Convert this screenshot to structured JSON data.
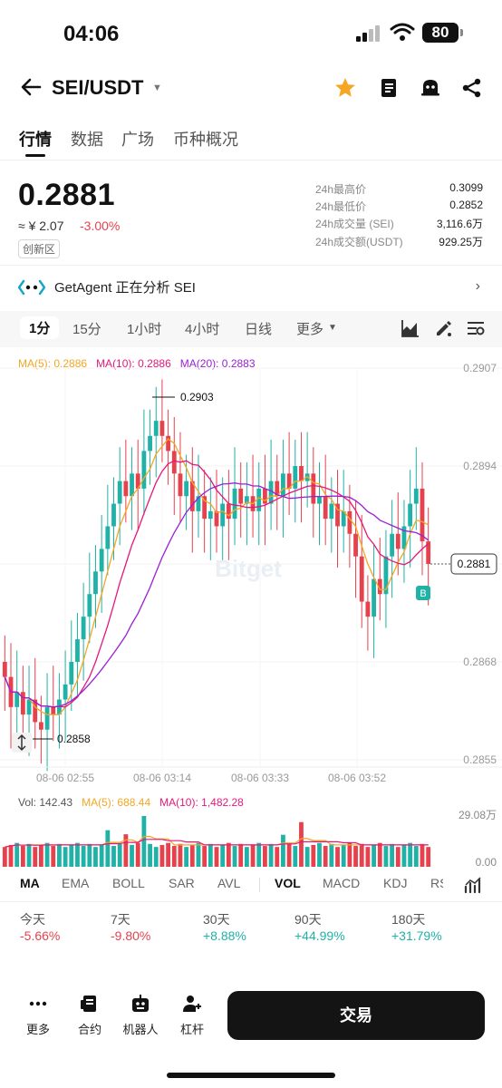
{
  "status": {
    "time": "04:06",
    "battery": "80"
  },
  "nav": {
    "pair": "SEI/USDT"
  },
  "tabs": [
    "行情",
    "数据",
    "广场",
    "币种概况"
  ],
  "ticker": {
    "price": "0.2881",
    "cny": "≈ ¥ 2.07",
    "change": "-3.00%",
    "zone": "创新区",
    "stats": [
      {
        "label": "24h最高价",
        "value": "0.3099"
      },
      {
        "label": "24h最低价",
        "value": "0.2852"
      },
      {
        "label": "24h成交量 (SEI)",
        "value": "3,116.6万"
      },
      {
        "label": "24h成交额(USDT)",
        "value": "929.25万"
      }
    ]
  },
  "agent": {
    "text": "GetAgent 正在分析 SEI"
  },
  "timeframes": [
    "1分",
    "15分",
    "1小时",
    "4小时",
    "日线",
    "更多"
  ],
  "chart": {
    "ma_legend": {
      "ma5": "MA(5): 0.2886",
      "ma10": "MA(10): 0.2886",
      "ma20": "MA(20): 0.2883"
    },
    "y_ticks": [
      "0.2907",
      "0.2894",
      "0.2881",
      "0.2868",
      "0.2855"
    ],
    "x_ticks": [
      "08-06 02:55",
      "08-06 03:14",
      "08-06 03:33",
      "08-06 03:52"
    ],
    "high_label": "0.2903",
    "low_label": "0.2858",
    "last_price": "0.2881",
    "watermark": "Bitget",
    "buy_marker": "B"
  },
  "chart_data": {
    "type": "candlestick",
    "ylim": [
      0.2855,
      0.2907
    ],
    "y_ticks": [
      0.2907,
      0.2894,
      0.2881,
      0.2868,
      0.2855
    ],
    "x_ticks": [
      "08-06 02:55",
      "08-06 03:14",
      "08-06 03:33",
      "08-06 03:52"
    ],
    "close": [
      0.2866,
      0.2862,
      0.2864,
      0.2861,
      0.2863,
      0.286,
      0.2859,
      0.2862,
      0.2861,
      0.2863,
      0.2865,
      0.2868,
      0.2871,
      0.2874,
      0.2877,
      0.288,
      0.2883,
      0.2886,
      0.2889,
      0.2892,
      0.289,
      0.2893,
      0.2891,
      0.2896,
      0.2898,
      0.29,
      0.2898,
      0.2896,
      0.2893,
      0.289,
      0.2892,
      0.2888,
      0.289,
      0.2887,
      0.2888,
      0.2886,
      0.2889,
      0.2887,
      0.2891,
      0.2889,
      0.289,
      0.2888,
      0.2891,
      0.2889,
      0.2892,
      0.289,
      0.2893,
      0.2891,
      0.2894,
      0.2892,
      0.2893,
      0.2889,
      0.289,
      0.2887,
      0.2889,
      0.2886,
      0.2888,
      0.2885,
      0.2882,
      0.2876,
      0.2874,
      0.2879,
      0.2877,
      0.2882,
      0.2885,
      0.2883,
      0.2886,
      0.2889,
      0.2891,
      0.2884,
      0.2881
    ],
    "high_marker": 0.2903,
    "low_marker": 0.2858,
    "last": 0.2881,
    "ma": {
      "ma5": 0.2886,
      "ma10": 0.2886,
      "ma20": 0.2883
    }
  },
  "volume": {
    "legend": {
      "vol": "Vol: 142.43",
      "ma5": "MA(5): 688.44",
      "ma10": "MA(10): 1,482.28"
    },
    "y_top": "29.08万",
    "y_bottom": "0.00"
  },
  "indicators_main": [
    "MA",
    "EMA",
    "BOLL",
    "SAR",
    "AVL"
  ],
  "indicators_sub": [
    "VOL",
    "MACD",
    "KDJ",
    "RS"
  ],
  "performance": [
    {
      "label": "今天",
      "value": "-5.66%",
      "dir": "neg"
    },
    {
      "label": "7天",
      "value": "-9.80%",
      "dir": "neg"
    },
    {
      "label": "30天",
      "value": "+8.88%",
      "dir": "pos"
    },
    {
      "label": "90天",
      "value": "+44.99%",
      "dir": "pos"
    },
    {
      "label": "180天",
      "value": "+31.79%",
      "dir": "pos"
    }
  ],
  "bottom": {
    "items": [
      "更多",
      "合约",
      "机器人",
      "杠杆"
    ],
    "trade": "交易"
  },
  "colors": {
    "up": "#20b2a6",
    "down": "#e5424e",
    "ma5": "#f5a623",
    "ma10": "#e5177b",
    "ma20": "#9b1fd6"
  }
}
